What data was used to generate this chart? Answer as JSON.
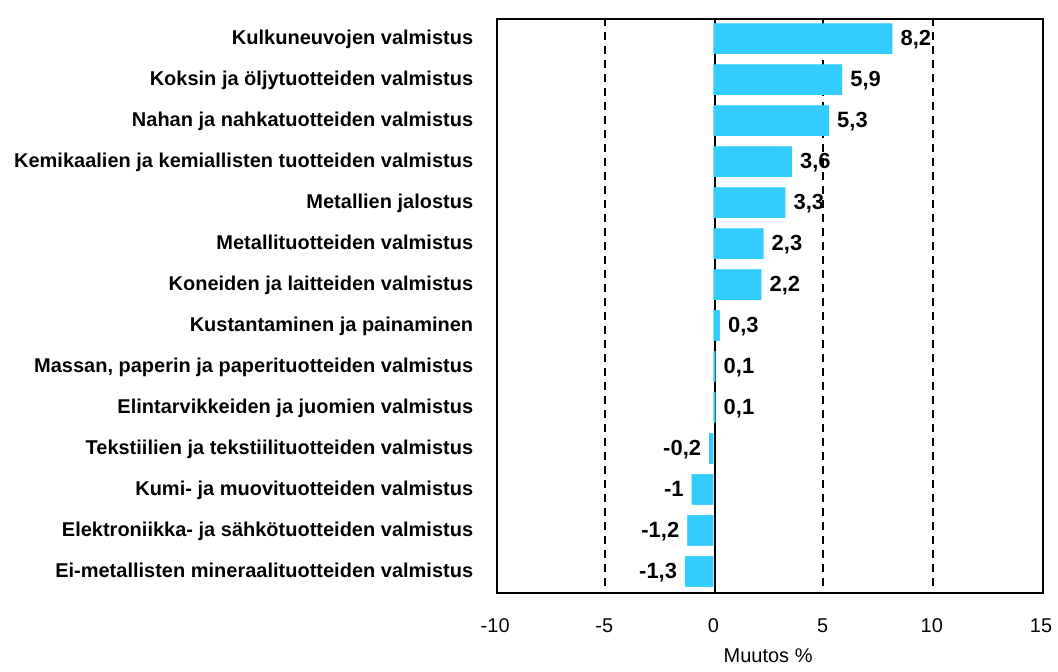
{
  "chart_data": {
    "type": "bar",
    "orientation": "horizontal",
    "xlabel": "Muutos %",
    "categories": [
      "Kulkuneuvojen valmistus",
      "Koksin ja öljytuotteiden valmistus",
      "Nahan ja nahkatuotteiden valmistus",
      "Kemikaalien ja kemiallisten tuotteiden valmistus",
      "Metallien jalostus",
      "Metallituotteiden valmistus",
      "Koneiden ja laitteiden valmistus",
      "Kustantaminen ja painaminen",
      "Massan, paperin ja paperituotteiden valmistus",
      "Elintarvikkeiden ja juomien valmistus",
      "Tekstiilien ja tekstiilituotteiden valmistus",
      "Kumi- ja muovituotteiden valmistus",
      "Elektroniikka- ja sähkötuotteiden valmistus",
      "Ei-metallisten mineraalituotteiden valmistus"
    ],
    "values": [
      8.2,
      5.9,
      5.3,
      3.6,
      3.3,
      2.3,
      2.2,
      0.3,
      0.1,
      0.1,
      -0.2,
      -1,
      -1.2,
      -1.3
    ],
    "value_labels": [
      "8,2",
      "5,9",
      "5,3",
      "3,6",
      "3,3",
      "2,3",
      "2,2",
      "0,3",
      "0,1",
      "0,1",
      "-0,2",
      "-1",
      "-1,2",
      "-1,3"
    ],
    "color": "#33ccff",
    "xlim": [
      -10,
      15
    ],
    "xticks": [
      -10,
      -5,
      0,
      5,
      10,
      15
    ],
    "grid": "x",
    "legend": false
  }
}
